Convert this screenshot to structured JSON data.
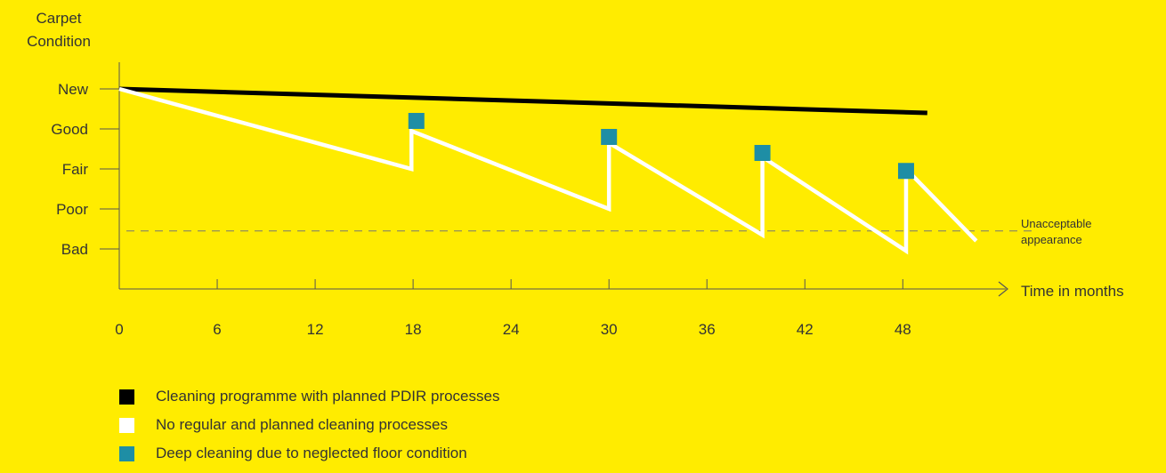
{
  "chart_data": {
    "type": "line",
    "ylabel_lines": [
      "Carpet",
      "Condition"
    ],
    "xlabel": "Time in months",
    "y_levels": [
      "New",
      "Good",
      "Fair",
      "Poor",
      "Bad"
    ],
    "y_values": [
      5,
      4,
      3,
      2,
      1
    ],
    "ylim": [
      0,
      5.6
    ],
    "x_ticks": [
      0,
      6,
      12,
      18,
      24,
      30,
      36,
      42,
      48
    ],
    "xlim": [
      0,
      53
    ],
    "grid": false,
    "legend_position": "bottom-left",
    "series": [
      {
        "name": "Cleaning programme with planned PDIR processes",
        "key": "pdir",
        "color": "#000000",
        "x": [
          0,
          49.5
        ],
        "y": [
          5,
          4.4
        ]
      },
      {
        "name": "No regular and planned cleaning processes",
        "key": "none",
        "color": "#FFFFFF",
        "x": [
          0,
          17.9,
          17.9,
          30,
          30,
          39.4,
          39.4,
          48.2,
          48.2,
          52.5
        ],
        "y": [
          5,
          3.0,
          3.95,
          2.0,
          3.65,
          1.35,
          3.3,
          0.95,
          3.0,
          1.2
        ]
      },
      {
        "name": "Deep cleaning due to neglected floor condition",
        "key": "deep",
        "color": "#1E8EA5",
        "x": [
          18.2,
          30.0,
          39.4,
          48.2
        ],
        "y": [
          4.2,
          3.8,
          3.4,
          2.95
        ]
      }
    ],
    "threshold": {
      "y": 1.45,
      "label_lines": [
        "Unacceptable",
        "appearance"
      ],
      "color": "#777777"
    }
  }
}
